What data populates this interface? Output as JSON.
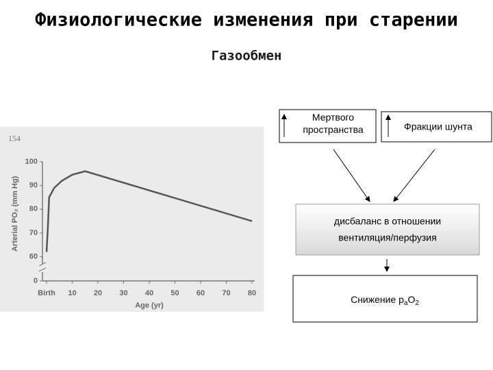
{
  "title": "Физиологические изменения при старении",
  "subtitle": "Газообмен",
  "chart_data": {
    "type": "line",
    "page_number": "154",
    "xlabel": "Age (yr)",
    "ylabel": "Arterial PO₂ (mm Hg)",
    "x": [
      0,
      0.5,
      1,
      3,
      6,
      10,
      15,
      80
    ],
    "values": [
      62,
      72,
      85,
      89,
      92,
      94.5,
      96,
      75
    ],
    "color": "#555555",
    "xlim": [
      0,
      80
    ],
    "xticks": [
      {
        "value": 0,
        "label": "Birth"
      },
      10,
      20,
      30,
      40,
      50,
      60,
      70,
      80
    ],
    "ylim": [
      55,
      100
    ],
    "yticks": [
      0,
      60,
      70,
      80,
      90,
      100
    ],
    "y_break": true
  },
  "diagram": {
    "dead_space": "Мертвого пространства",
    "shunt": "Фракции шунта",
    "imbalance": [
      "дисбаланс в отношении",
      "вентиляция/перфузия"
    ],
    "decrease": {
      "text": "Снижение p",
      "sub_a": "a",
      "o": "O",
      "sub_2": "2"
    }
  }
}
